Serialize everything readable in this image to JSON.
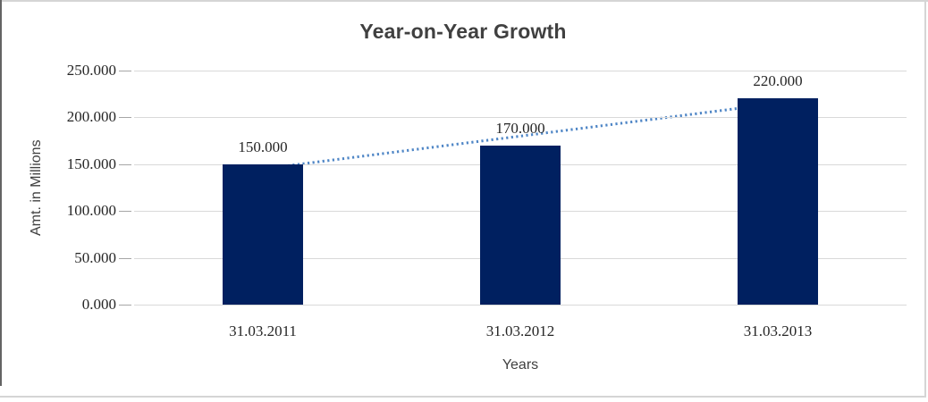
{
  "chart_data": {
    "type": "bar",
    "title": "Year-on-Year Growth",
    "xlabel": "Years",
    "ylabel": "Amt. in Millions",
    "categories": [
      "31.03.2011",
      "31.03.2012",
      "31.03.2013"
    ],
    "values": [
      150,
      170,
      220
    ],
    "value_labels": [
      "150.000",
      "170.000",
      "220.000"
    ],
    "ylim": [
      0,
      250
    ],
    "ytick_step": 50,
    "ytick_labels": [
      "0.000",
      "50.000",
      "100.000",
      "150.000",
      "200.000",
      "250.000"
    ],
    "grid": true,
    "legend": "none",
    "trendline": {
      "type": "linear",
      "style": "dotted",
      "endpoint_values": [
        145,
        215
      ]
    },
    "colors": {
      "bar": "#002060",
      "trendline": "#4f86c6",
      "gridline": "#d9d9d9",
      "title_text": "#404040",
      "axis_text": "#262626",
      "tick_mark": "#a6a6a6",
      "frame_border_light": "#d5d5d5",
      "frame_border_dark": "#646464"
    }
  }
}
